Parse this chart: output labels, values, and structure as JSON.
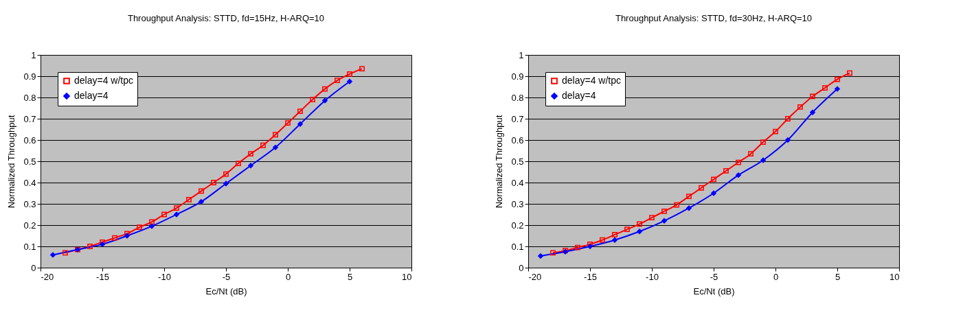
{
  "chart_data": [
    {
      "type": "line",
      "title": "Throughput Analysis: STTD, fd=15Hz, H-ARQ=10",
      "xlabel": "Ec/Nt (dB)",
      "ylabel": "Normalized Throughput",
      "xlim": [
        -20,
        10
      ],
      "xticks": [
        -20,
        -15,
        -10,
        -5,
        0,
        5,
        10
      ],
      "ylim": [
        0,
        1
      ],
      "yticks": [
        0,
        0.1,
        0.2,
        0.3,
        0.4,
        0.5,
        0.6,
        0.7,
        0.8,
        0.9,
        1
      ],
      "grid": "y",
      "legend": "top left",
      "series": [
        {
          "name": "delay=4 w/tpc",
          "color": "#ff0000",
          "marker": "square",
          "x": [
            -18,
            -17,
            -16,
            -15,
            -14,
            -13,
            -12,
            -11,
            -10,
            -9,
            -8,
            -7,
            -6,
            -5,
            -4,
            -3,
            -2,
            -1,
            0,
            1,
            2,
            3,
            4,
            5,
            6
          ],
          "values": [
            0.07,
            0.085,
            0.1,
            0.12,
            0.14,
            0.16,
            0.19,
            0.215,
            0.25,
            0.28,
            0.32,
            0.36,
            0.4,
            0.44,
            0.49,
            0.535,
            0.575,
            0.625,
            0.68,
            0.735,
            0.79,
            0.84,
            0.88,
            0.91,
            0.935
          ]
        },
        {
          "name": "delay=4",
          "color": "#0000ff",
          "marker": "diamond",
          "x": [
            -19,
            -17,
            -15,
            -13,
            -11,
            -9,
            -7,
            -5,
            -3,
            -1,
            1,
            3,
            5
          ],
          "values": [
            0.06,
            0.085,
            0.11,
            0.15,
            0.195,
            0.25,
            0.31,
            0.395,
            0.48,
            0.565,
            0.675,
            0.785,
            0.875
          ]
        }
      ]
    },
    {
      "type": "line",
      "title": "Throughput Analysis: STTD, fd=30Hz, H-ARQ=10",
      "xlabel": "Ec/Nt (dB)",
      "ylabel": "Normalized Throughput",
      "xlim": [
        -20,
        10
      ],
      "xticks": [
        -20,
        -15,
        -10,
        -5,
        0,
        5,
        10
      ],
      "ylim": [
        0,
        1
      ],
      "yticks": [
        0,
        0.1,
        0.2,
        0.3,
        0.4,
        0.5,
        0.6,
        0.7,
        0.8,
        0.9,
        1
      ],
      "grid": "y",
      "legend": "top left",
      "series": [
        {
          "name": "delay=4 w/tpc",
          "color": "#ff0000",
          "marker": "square",
          "x": [
            -18,
            -17,
            -16,
            -15,
            -14,
            -13,
            -12,
            -11,
            -10,
            -9,
            -8,
            -7,
            -6,
            -5,
            -4,
            -3,
            -2,
            -1,
            0,
            1,
            2,
            3,
            4,
            5,
            6
          ],
          "values": [
            0.07,
            0.08,
            0.095,
            0.11,
            0.13,
            0.155,
            0.18,
            0.205,
            0.235,
            0.265,
            0.295,
            0.335,
            0.375,
            0.415,
            0.455,
            0.495,
            0.535,
            0.59,
            0.64,
            0.7,
            0.755,
            0.805,
            0.845,
            0.885,
            0.915
          ]
        },
        {
          "name": "delay=4",
          "color": "#0000ff",
          "marker": "diamond",
          "x": [
            -19,
            -17,
            -15,
            -13,
            -11,
            -9,
            -7,
            -5,
            -3,
            -1,
            1,
            3,
            5
          ],
          "values": [
            0.055,
            0.075,
            0.1,
            0.13,
            0.17,
            0.22,
            0.28,
            0.35,
            0.435,
            0.505,
            0.6,
            0.73,
            0.84
          ]
        }
      ]
    }
  ]
}
